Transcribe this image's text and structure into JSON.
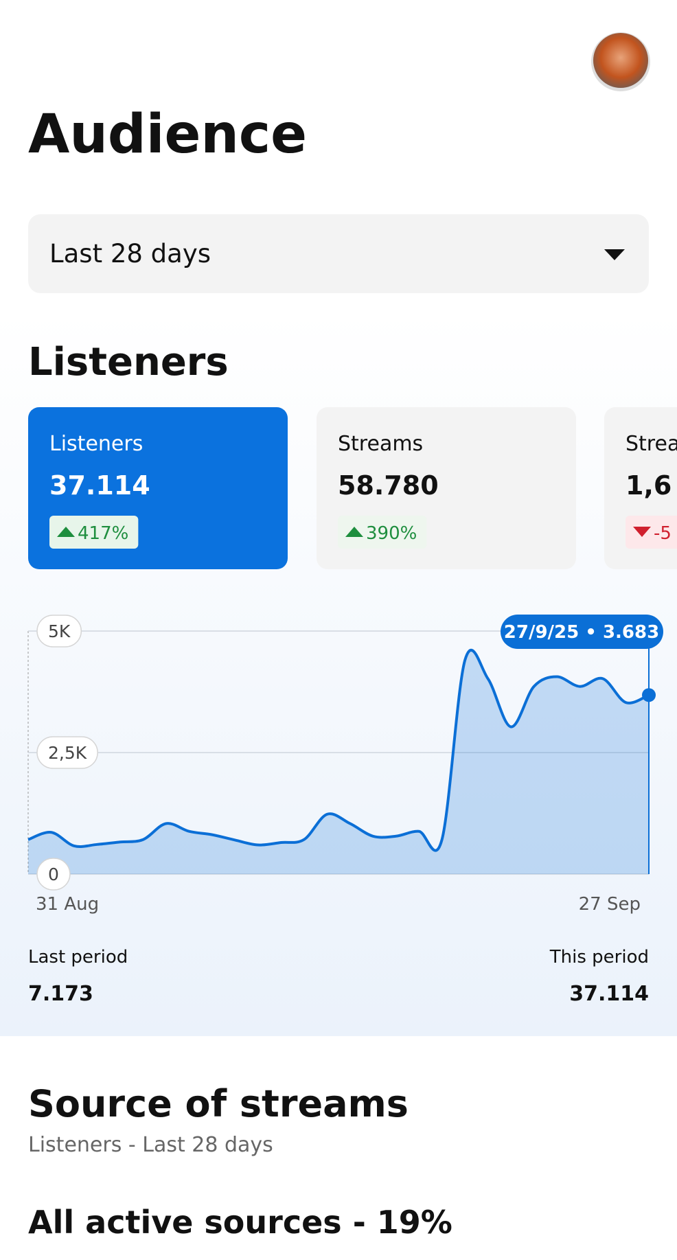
{
  "header": {
    "title": "Audience"
  },
  "filter": {
    "label": "Last 28 days"
  },
  "listeners": {
    "title": "Listeners",
    "cards": [
      {
        "label": "Listeners",
        "value": "37.114",
        "change": "417%"
      },
      {
        "label": "Streams",
        "value": "58.780",
        "change": "390%"
      },
      {
        "label": "Strea",
        "value": "1,6",
        "change": "-5"
      }
    ]
  },
  "chart_data": {
    "type": "line",
    "categories": [
      "31 Aug",
      null,
      null,
      null,
      null,
      null,
      null,
      null,
      null,
      null,
      null,
      null,
      null,
      null,
      null,
      null,
      null,
      null,
      null,
      null,
      null,
      null,
      null,
      null,
      null,
      null,
      null,
      "27 Sep"
    ],
    "series": [
      {
        "name": "Listeners",
        "color": "#0b6fd6",
        "values": [
          710,
          860,
          580,
          610,
          660,
          710,
          1040,
          880,
          810,
          700,
          600,
          650,
          710,
          1230,
          1040,
          780,
          780,
          880,
          710,
          4400,
          4020,
          3030,
          3860,
          4060,
          3860,
          4020,
          3530,
          3683
        ]
      }
    ],
    "ylim": [
      0,
      5000
    ],
    "yticks": [
      0,
      {
        "value": 2500,
        "label": "2,5K"
      },
      {
        "value": 5000,
        "label": "5K"
      }
    ],
    "grid": true,
    "tooltip": "27/9/25 • 3.683"
  },
  "summary": {
    "last_label": "Last period",
    "last_value": "7.173",
    "this_label": "This period",
    "this_value": "37.114"
  },
  "sources": {
    "title": "Source of streams",
    "subtitle": "Listeners - Last 28 days",
    "heading": "All active sources - 19%"
  }
}
